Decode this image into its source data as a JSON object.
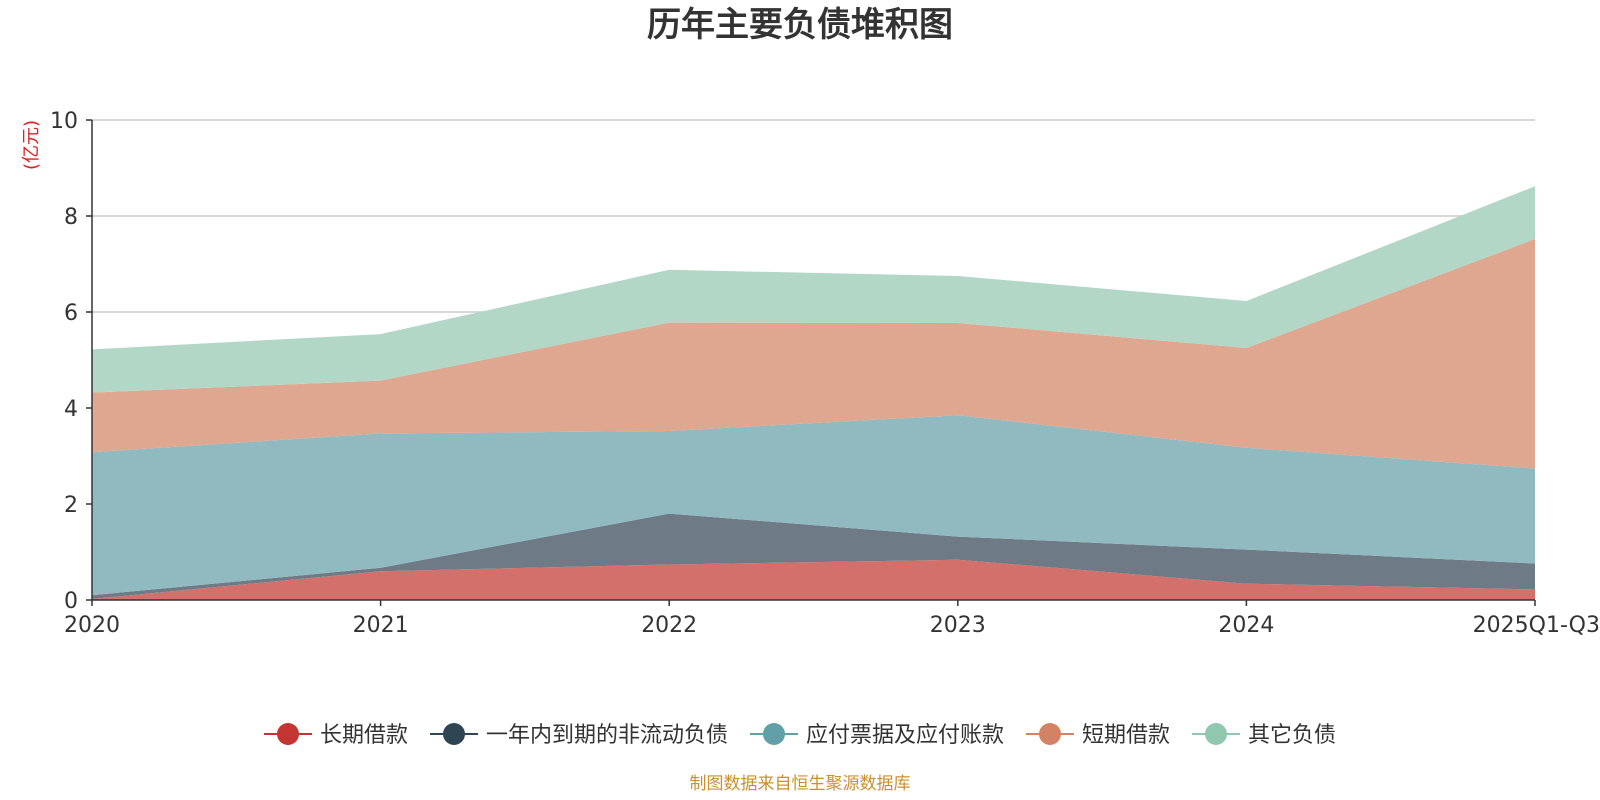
{
  "chart_data": {
    "type": "area",
    "stacked": true,
    "title": "历年主要负债堆积图",
    "ylabel": "(亿元)",
    "xlabel": "",
    "categories": [
      "2020",
      "2021",
      "2022",
      "2023",
      "2024",
      "2025Q1-Q3"
    ],
    "ylim": [
      0,
      10
    ],
    "yticks": [
      0,
      2,
      4,
      6,
      8,
      10
    ],
    "grid": true,
    "legend_position": "bottom",
    "series": [
      {
        "name": "长期借款",
        "color": "#c23531",
        "fill": "#d4706b",
        "values": [
          0.02,
          0.6,
          0.74,
          0.84,
          0.34,
          0.22
        ]
      },
      {
        "name": "一年内到期的非流动负债",
        "color": "#2f4554",
        "fill": "#6e7b86",
        "values": [
          0.08,
          0.07,
          1.06,
          0.48,
          0.71,
          0.54
        ]
      },
      {
        "name": "应付票据及应付账款",
        "color": "#61a0a8",
        "fill": "#90bac0",
        "values": [
          2.98,
          2.8,
          1.72,
          2.53,
          2.12,
          1.98
        ]
      },
      {
        "name": "短期借款",
        "color": "#d48265",
        "fill": "#dfa690",
        "values": [
          1.24,
          1.1,
          2.26,
          1.92,
          2.08,
          4.78
        ]
      },
      {
        "name": "其它负债",
        "color": "#91c7ae",
        "fill": "#b2d7c6",
        "values": [
          0.9,
          0.97,
          1.1,
          0.98,
          0.98,
          1.1
        ]
      }
    ],
    "source_note": "制图数据来自恒生聚源数据库"
  }
}
